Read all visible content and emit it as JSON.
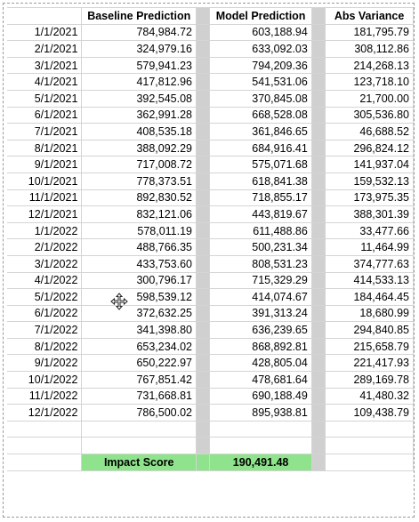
{
  "headers": {
    "date": "",
    "baseline": "Baseline Prediction",
    "model": "Model Prediction",
    "variance": "Abs Variance"
  },
  "rows": [
    {
      "date": "1/1/2021",
      "baseline": "784,984.72",
      "model": "603,188.94",
      "variance": "181,795.79"
    },
    {
      "date": "2/1/2021",
      "baseline": "324,979.16",
      "model": "633,092.03",
      "variance": "308,112.86"
    },
    {
      "date": "3/1/2021",
      "baseline": "579,941.23",
      "model": "794,209.36",
      "variance": "214,268.13"
    },
    {
      "date": "4/1/2021",
      "baseline": "417,812.96",
      "model": "541,531.06",
      "variance": "123,718.10"
    },
    {
      "date": "5/1/2021",
      "baseline": "392,545.08",
      "model": "370,845.08",
      "variance": "21,700.00"
    },
    {
      "date": "6/1/2021",
      "baseline": "362,991.28",
      "model": "668,528.08",
      "variance": "305,536.80"
    },
    {
      "date": "7/1/2021",
      "baseline": "408,535.18",
      "model": "361,846.65",
      "variance": "46,688.52"
    },
    {
      "date": "8/1/2021",
      "baseline": "388,092.29",
      "model": "684,916.41",
      "variance": "296,824.12"
    },
    {
      "date": "9/1/2021",
      "baseline": "717,008.72",
      "model": "575,071.68",
      "variance": "141,937.04"
    },
    {
      "date": "10/1/2021",
      "baseline": "778,373.51",
      "model": "618,841.38",
      "variance": "159,532.13"
    },
    {
      "date": "11/1/2021",
      "baseline": "892,830.52",
      "model": "718,855.17",
      "variance": "173,975.35"
    },
    {
      "date": "12/1/2021",
      "baseline": "832,121.06",
      "model": "443,819.67",
      "variance": "388,301.39"
    },
    {
      "date": "1/1/2022",
      "baseline": "578,011.19",
      "model": "611,488.86",
      "variance": "33,477.66"
    },
    {
      "date": "2/1/2022",
      "baseline": "488,766.35",
      "model": "500,231.34",
      "variance": "11,464.99"
    },
    {
      "date": "3/1/2022",
      "baseline": "433,753.60",
      "model": "808,531.23",
      "variance": "374,777.63"
    },
    {
      "date": "4/1/2022",
      "baseline": "300,796.17",
      "model": "715,329.29",
      "variance": "414,533.13"
    },
    {
      "date": "5/1/2022",
      "baseline": "598,539.12",
      "model": "414,074.67",
      "variance": "184,464.45"
    },
    {
      "date": "6/1/2022",
      "baseline": "372,632.25",
      "model": "391,313.24",
      "variance": "18,680.99"
    },
    {
      "date": "7/1/2022",
      "baseline": "341,398.80",
      "model": "636,239.65",
      "variance": "294,840.85"
    },
    {
      "date": "8/1/2022",
      "baseline": "653,234.02",
      "model": "868,892.81",
      "variance": "215,658.79"
    },
    {
      "date": "9/1/2022",
      "baseline": "650,222.97",
      "model": "428,805.04",
      "variance": "221,417.93"
    },
    {
      "date": "10/1/2022",
      "baseline": "767,851.42",
      "model": "478,681.64",
      "variance": "289,169.78"
    },
    {
      "date": "11/1/2022",
      "baseline": "731,668.81",
      "model": "690,188.49",
      "variance": "41,480.32"
    },
    {
      "date": "12/1/2022",
      "baseline": "786,500.02",
      "model": "895,938.81",
      "variance": "109,438.79"
    }
  ],
  "summary": {
    "label": "Impact Score",
    "value": "190,491.48"
  },
  "colors": {
    "summary_fill": "#8fe38c",
    "gap_column": "#d0d0d0",
    "gridline": "#d4d4d4"
  },
  "cursor_icon": "move-cursor-icon"
}
